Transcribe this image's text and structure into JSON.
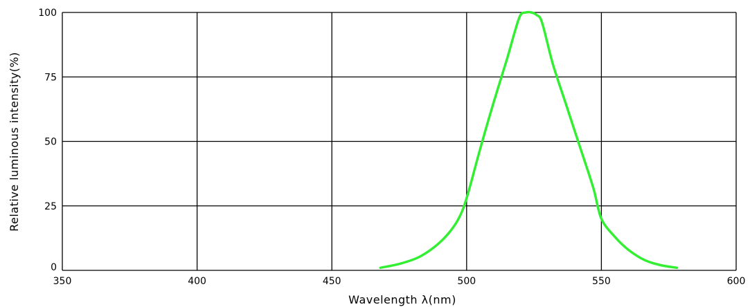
{
  "chart_data": {
    "type": "line",
    "title": "",
    "xlabel": "Wavelength  λ(nm)",
    "ylabel": "Relative  luminous  intensity(%)",
    "xlim": [
      350,
      600
    ],
    "ylim": [
      0,
      100
    ],
    "xticks": [
      350,
      400,
      450,
      500,
      550,
      600
    ],
    "yticks": [
      0,
      25,
      50,
      75,
      100
    ],
    "grid": true,
    "legend": "none",
    "series": [
      {
        "color": "#33ee33",
        "x": [
          468,
          475,
          482,
          488,
          493,
          497,
          500,
          505,
          510,
          515,
          518,
          520,
          522,
          524,
          526,
          528,
          532,
          537,
          542,
          547,
          550,
          555,
          560,
          566,
          572,
          578
        ],
        "y": [
          1,
          2.5,
          5,
          9,
          14,
          20,
          28,
          47,
          65,
          82,
          93,
          99,
          100,
          100,
          99,
          96,
          80,
          64,
          48,
          32,
          20,
          13,
          8,
          4,
          2,
          1
        ]
      }
    ]
  }
}
